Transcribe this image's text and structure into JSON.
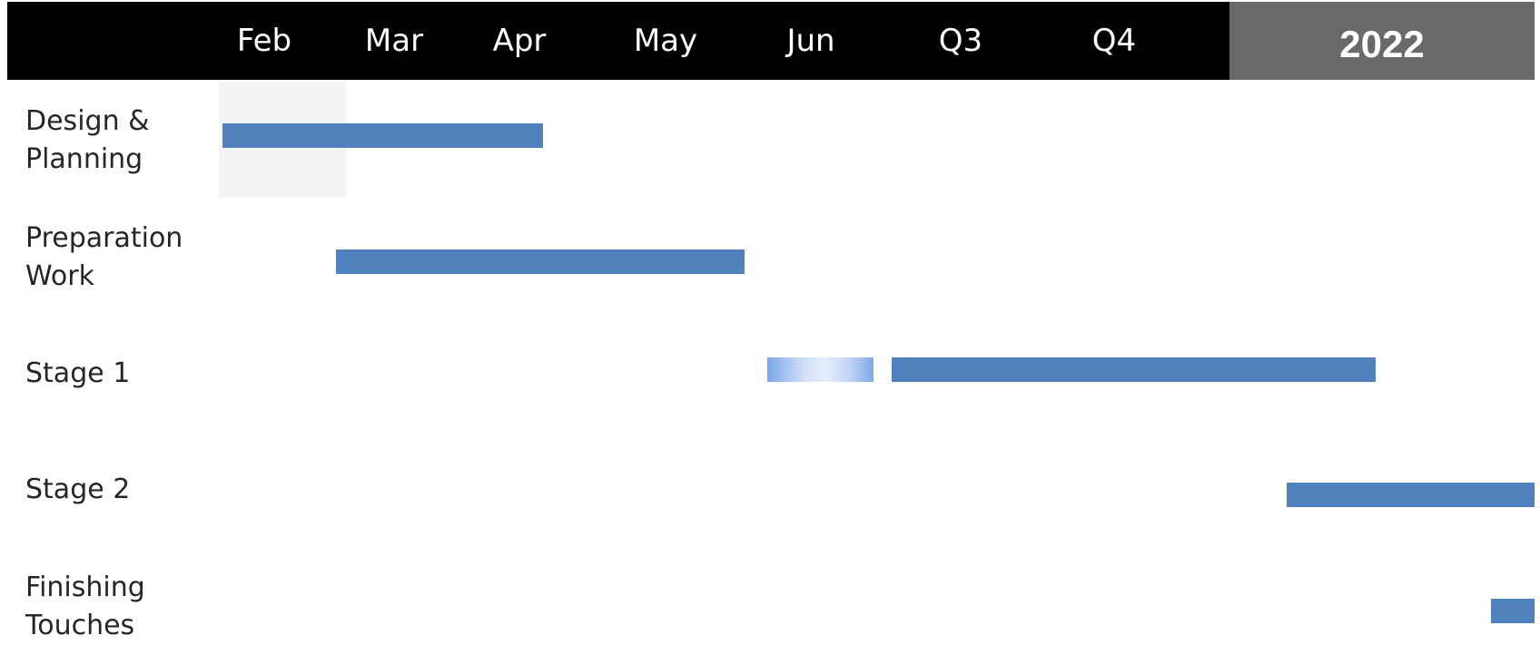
{
  "timeline": {
    "months": [
      "Feb",
      "Mar",
      "Apr",
      "May",
      "Jun",
      "Q3",
      "Q4"
    ],
    "year": "2022"
  },
  "chart_data": {
    "type": "gantt",
    "categories": [
      "Feb",
      "Mar",
      "Apr",
      "May",
      "Jun",
      "Q3",
      "Q4"
    ],
    "year_label": "2022",
    "tasks": [
      {
        "label": [
          "Design &",
          "Planning"
        ],
        "segments": [
          {
            "start": "Feb",
            "end": "mid-Apr",
            "style": "solid"
          }
        ]
      },
      {
        "label": [
          "Preparation",
          "Work"
        ],
        "segments": [
          {
            "start": "early Mar",
            "end": "end of May",
            "style": "solid"
          }
        ]
      },
      {
        "label": [
          "Stage 1"
        ],
        "segments": [
          {
            "start": "early Jun",
            "end": "late Jun",
            "style": "gradient"
          },
          {
            "start": "Q3",
            "end": "2022",
            "style": "solid"
          }
        ]
      },
      {
        "label": [
          "Stage 2"
        ],
        "segments": [
          {
            "start": "late Q4",
            "end": "beyond 2022",
            "style": "solid"
          }
        ]
      },
      {
        "label": [
          "Finishing",
          "Touches"
        ],
        "segments": [
          {
            "start": "late 2022",
            "end": "beyond 2022",
            "style": "solid"
          }
        ]
      }
    ],
    "highlight_column": "Feb",
    "colors": {
      "bar": "#4f81bd",
      "header": "#000000",
      "year_header": "#696969",
      "highlight": "#f4f4f4"
    }
  }
}
